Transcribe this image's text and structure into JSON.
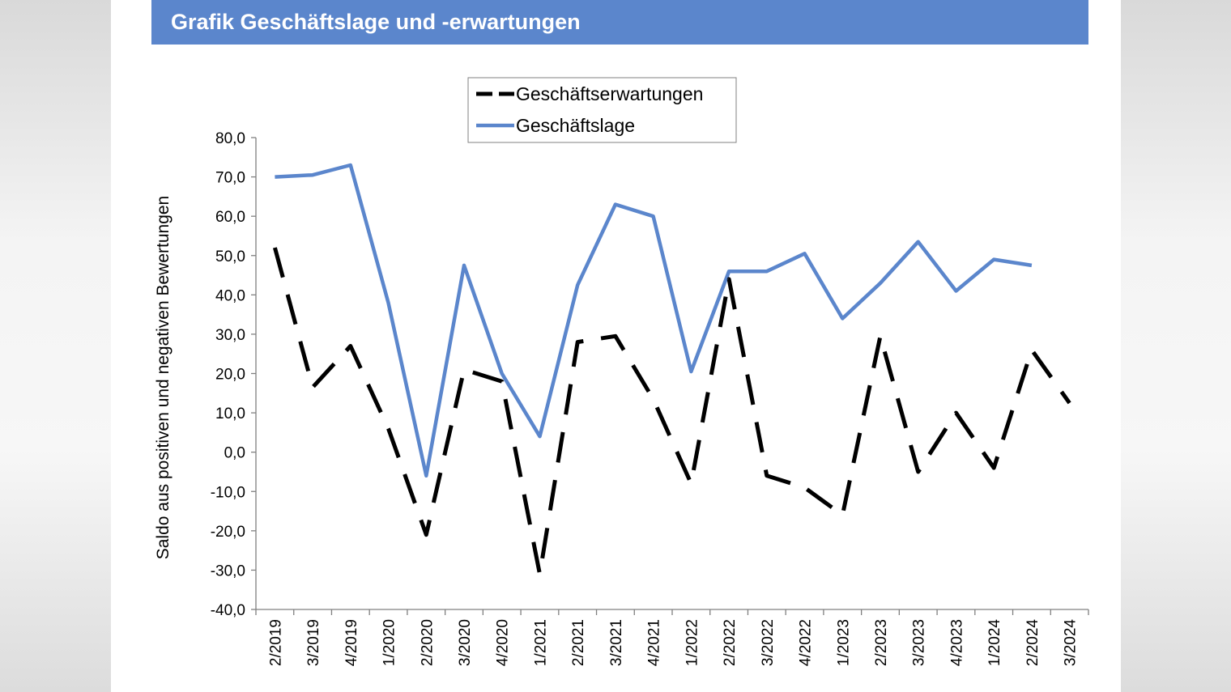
{
  "header": {
    "title": "Grafik Geschäftslage und -erwartungen"
  },
  "chart_data": {
    "type": "line",
    "ylabel": "Saldo aus positiven und negativen Bewertungen",
    "xlabel": "",
    "ylim": [
      -40,
      80
    ],
    "y_ticks": [
      80,
      70,
      60,
      50,
      40,
      30,
      20,
      10,
      0,
      -10,
      -20,
      -30,
      -40
    ],
    "y_tick_labels": [
      "80,0",
      "70,0",
      "60,0",
      "50,0",
      "40,0",
      "30,0",
      "20,0",
      "10,0",
      "0,0",
      "-10,0",
      "-20,0",
      "-30,0",
      "-40,0"
    ],
    "categories": [
      "2/2019",
      "3/2019",
      "4/2019",
      "1/2020",
      "2/2020",
      "3/2020",
      "4/2020",
      "1/2021",
      "2/2021",
      "3/2021",
      "4/2021",
      "1/2022",
      "2/2022",
      "3/2022",
      "4/2022",
      "1/2023",
      "2/2023",
      "3/2023",
      "4/2023",
      "1/2024",
      "2/2024",
      "3/2024"
    ],
    "legend_position": "top",
    "grid": false,
    "series": [
      {
        "name": "Geschäftserwartungen",
        "color": "#000000",
        "style": "dashed",
        "values": [
          52,
          16.5,
          27,
          6,
          -21,
          21,
          18,
          -31,
          28,
          29.5,
          13.5,
          -8,
          44,
          -6,
          -9,
          -16,
          29.5,
          -5,
          10,
          -4,
          26,
          12.5
        ]
      },
      {
        "name": "Geschäftslage",
        "color": "#5b86cc",
        "style": "solid",
        "values": [
          70,
          70.5,
          73,
          38,
          -6,
          47.5,
          20,
          4,
          42.5,
          63,
          60,
          20.5,
          46,
          46,
          50.5,
          34,
          43,
          53.5,
          41,
          49,
          47.5,
          null
        ]
      }
    ]
  }
}
